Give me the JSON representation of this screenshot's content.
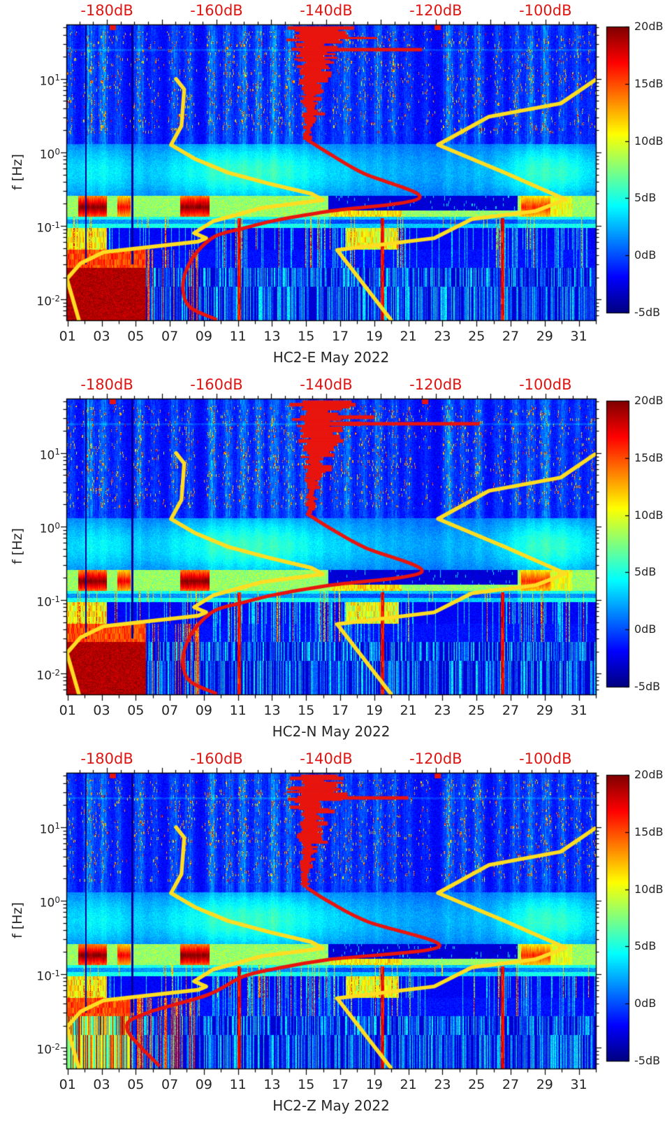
{
  "colors": {
    "background": "#ffffff",
    "axis_text": "#262626",
    "top_axis_text": "#df1512",
    "frame": "#000000",
    "red_curve": "#e8140e",
    "yellow_curve": "#ffdd22",
    "colormap_low": "#00008f",
    "colormap_high": "#800000"
  },
  "chart_data": {
    "type": "heatmap",
    "colormap": "jet",
    "value_unit": "dB",
    "value_range": [
      -5,
      20
    ],
    "axes": {
      "x": {
        "unit": "day of month",
        "tick_labels": [
          "01",
          "03",
          "05",
          "07",
          "09",
          "11",
          "13",
          "15",
          "17",
          "19",
          "21",
          "23",
          "25",
          "27",
          "29",
          "31"
        ],
        "tick_days": [
          1,
          3,
          5,
          7,
          9,
          11,
          13,
          15,
          17,
          19,
          21,
          23,
          25,
          27,
          29,
          31
        ],
        "range_days": [
          0.93,
          32.0
        ]
      },
      "y": {
        "label": "f [Hz]",
        "scale": "log",
        "range_hz": [
          0.0052,
          55
        ],
        "ticks": [
          {
            "base": "10",
            "exp": "1",
            "value": 10
          },
          {
            "base": "10",
            "exp": "0",
            "value": 1
          },
          {
            "base": "10",
            "exp": "-1",
            "value": 0.1
          },
          {
            "base": "10",
            "exp": "-2",
            "value": 0.01
          }
        ]
      },
      "top": {
        "unit": "dB",
        "tick_labels": [
          "-180dB",
          "-160dB",
          "-140dB",
          "-120dB",
          "-100dB"
        ],
        "tick_values": [
          -180,
          -160,
          -140,
          -120,
          -100
        ],
        "range_db": [
          -187.4,
          -90.8
        ],
        "minor_step_db": 2.5
      },
      "colorbar": {
        "tick_labels": [
          "20dB",
          "15dB",
          "10dB",
          "5dB",
          "0dB",
          "-5dB"
        ],
        "tick_values": [
          20,
          15,
          10,
          5,
          0,
          -5
        ]
      }
    },
    "overlay_note": "red and yellow curves are PSD level [dB, top axis] versus frequency [Hz, left axis]",
    "texture_shared": {
      "storm_events": [
        [
          1.15,
          0.5
        ],
        [
          2.25,
          0.95
        ],
        [
          3.1,
          0.75
        ],
        [
          3.95,
          0.5
        ],
        [
          5.2,
          0.75
        ],
        [
          6.1,
          0.4
        ],
        [
          7.25,
          0.65
        ],
        [
          8.15,
          0.55
        ],
        [
          9.45,
          0.85
        ],
        [
          10.4,
          0.7
        ],
        [
          11.3,
          0.8
        ],
        [
          12.2,
          0.75
        ],
        [
          13.1,
          0.9
        ],
        [
          14.0,
          0.8
        ],
        [
          14.9,
          0.7
        ],
        [
          15.8,
          0.6
        ],
        [
          16.7,
          0.5
        ],
        [
          17.4,
          0.7
        ],
        [
          18.3,
          0.6
        ],
        [
          19.2,
          0.75
        ],
        [
          20.1,
          0.6
        ],
        [
          21.0,
          0.45
        ],
        [
          22.0,
          0.3
        ],
        [
          23.35,
          0.9
        ],
        [
          24.2,
          0.55
        ],
        [
          25.1,
          0.75
        ],
        [
          26.3,
          0.5
        ],
        [
          27.3,
          0.65
        ],
        [
          28.15,
          0.75
        ],
        [
          29.05,
          0.85
        ],
        [
          30.0,
          0.6
        ],
        [
          30.9,
          0.55
        ],
        [
          31.7,
          0.4
        ]
      ],
      "microseism_hot_spells_days": [
        [
          1.6,
          3.3
        ],
        [
          3.9,
          4.7
        ],
        [
          7.6,
          9.3
        ],
        [
          27.6,
          29.3
        ]
      ],
      "microseism_hot_peak_db": [
        19,
        16,
        19,
        15
      ],
      "quiet_gap_days": [
        16.3,
        27.4
      ],
      "lowfreq_red_column_days": [
        11.05,
        19.45,
        26.5
      ],
      "dark_line_days": [
        2.06,
        4.78
      ],
      "streak_zone_days": [
        [
          1.0,
          3.5
        ],
        [
          9.5,
          21.5
        ],
        [
          25.8,
          31.5
        ]
      ]
    },
    "subplots": [
      {
        "title": "HC2-E May 2022",
        "red_curve_db_hz": [
          [
            -143.4,
            1.48
          ],
          [
            -139.4,
            0.96
          ],
          [
            -133.2,
            0.52
          ],
          [
            -123.0,
            0.24
          ],
          [
            -139.6,
            0.158
          ],
          [
            -149.2,
            0.119
          ],
          [
            -155.3,
            0.092
          ],
          [
            -160.3,
            0.072
          ],
          [
            -163.8,
            0.042
          ],
          [
            -165.7,
            0.023
          ],
          [
            -166.1,
            0.013
          ],
          [
            -164.8,
            0.0078
          ],
          [
            -160.2,
            0.0054
          ]
        ],
        "red_jagged": {
          "center_db": -142.5,
          "f_top_hz": 52,
          "f_join_hz": 1.55,
          "spread_top_db": 7.5,
          "spread_join_db": 1.2,
          "spike": {
            "f_hz": 25,
            "to_db": -122.5
          },
          "top_marks_db": [
            -179.0,
            -119.7
          ]
        },
        "yellow_curve_left_db_hz": [
          [
            -185.1,
            0.0052
          ],
          [
            -187.3,
            0.019
          ],
          [
            -184.8,
            0.031
          ],
          [
            -180.6,
            0.044
          ],
          [
            -163.4,
            0.061
          ],
          [
            -161.9,
            0.068
          ],
          [
            -164.1,
            0.08
          ],
          [
            -160.6,
            0.116
          ],
          [
            -151.7,
            0.176
          ],
          [
            -140.6,
            0.225
          ],
          [
            -142.7,
            0.274
          ],
          [
            -150.3,
            0.373
          ],
          [
            -157.9,
            0.53
          ],
          [
            -164.0,
            0.82
          ],
          [
            -168.3,
            1.27
          ],
          [
            -166.4,
            2.3
          ],
          [
            -165.9,
            7.2
          ],
          [
            -167.4,
            10.0
          ]
        ],
        "yellow_curve_right_db_hz": [
          [
            -128.2,
            0.0053
          ],
          [
            -138.0,
            0.047
          ],
          [
            -120.3,
            0.068
          ],
          [
            -113.4,
            0.124
          ],
          [
            -101.8,
            0.159
          ],
          [
            -96.3,
            0.229
          ],
          [
            -107.4,
            0.53
          ],
          [
            -119.6,
            1.27
          ],
          [
            -110.3,
            3.06
          ],
          [
            -97.2,
            4.64
          ],
          [
            -91.0,
            9.6
          ]
        ],
        "texture": {
          "seed": 1,
          "lowf_block_style": "solid",
          "lowf_block_end_day": 5.6
        }
      },
      {
        "title": "HC2-N May 2022",
        "red_curve_db_hz": [
          [
            -143.4,
            1.48
          ],
          [
            -139.4,
            0.96
          ],
          [
            -133.0,
            0.52
          ],
          [
            -122.6,
            0.24
          ],
          [
            -139.6,
            0.158
          ],
          [
            -149.2,
            0.119
          ],
          [
            -155.3,
            0.092
          ],
          [
            -160.3,
            0.072
          ],
          [
            -163.8,
            0.042
          ],
          [
            -165.7,
            0.023
          ],
          [
            -166.1,
            0.013
          ],
          [
            -164.8,
            0.0078
          ],
          [
            -160.2,
            0.0054
          ]
        ],
        "red_jagged": {
          "center_db": -142.0,
          "f_top_hz": 52,
          "f_join_hz": 1.55,
          "spread_top_db": 7.5,
          "spread_join_db": 1.2,
          "spike": {
            "f_hz": 25,
            "to_db": -112.0
          },
          "top_marks_db": [
            -179.0,
            -122.0
          ]
        },
        "yellow_curve_left_db_hz": [
          [
            -185.1,
            0.0052
          ],
          [
            -187.3,
            0.019
          ],
          [
            -184.8,
            0.031
          ],
          [
            -180.6,
            0.044
          ],
          [
            -163.4,
            0.061
          ],
          [
            -161.9,
            0.068
          ],
          [
            -164.1,
            0.08
          ],
          [
            -160.6,
            0.116
          ],
          [
            -151.7,
            0.176
          ],
          [
            -140.6,
            0.225
          ],
          [
            -142.7,
            0.274
          ],
          [
            -150.3,
            0.373
          ],
          [
            -157.9,
            0.53
          ],
          [
            -164.0,
            0.82
          ],
          [
            -168.3,
            1.27
          ],
          [
            -166.4,
            2.3
          ],
          [
            -165.9,
            7.2
          ],
          [
            -167.4,
            10.0
          ]
        ],
        "yellow_curve_right_db_hz": [
          [
            -128.2,
            0.0053
          ],
          [
            -138.0,
            0.047
          ],
          [
            -120.3,
            0.068
          ],
          [
            -113.4,
            0.124
          ],
          [
            -101.8,
            0.159
          ],
          [
            -96.3,
            0.229
          ],
          [
            -107.4,
            0.53
          ],
          [
            -119.6,
            1.27
          ],
          [
            -110.3,
            3.06
          ],
          [
            -97.2,
            4.64
          ],
          [
            -91.0,
            9.6
          ]
        ],
        "texture": {
          "seed": 2,
          "lowf_block_style": "solid",
          "lowf_block_end_day": 5.6
        }
      },
      {
        "title": "HC2-Z May 2022",
        "red_curve_db_hz": [
          [
            -143.4,
            1.48
          ],
          [
            -139.4,
            0.96
          ],
          [
            -132.5,
            0.52
          ],
          [
            -119.4,
            0.238
          ],
          [
            -139.6,
            0.158
          ],
          [
            -149.2,
            0.119
          ],
          [
            -155.3,
            0.092
          ],
          [
            -161.7,
            0.052
          ],
          [
            -173.1,
            0.029
          ],
          [
            -176.3,
            0.0177
          ],
          [
            -170.6,
            0.0058
          ]
        ],
        "red_jagged": {
          "center_db": -143.0,
          "f_top_hz": 52,
          "f_join_hz": 1.55,
          "spread_top_db": 7.5,
          "spread_join_db": 1.2,
          "spike": {
            "f_hz": 25,
            "to_db": -125.0
          },
          "top_marks_db": [
            -179.0,
            -119.7
          ]
        },
        "yellow_curve_left_db_hz": [
          [
            -185.1,
            0.0052
          ],
          [
            -187.3,
            0.019
          ],
          [
            -184.8,
            0.031
          ],
          [
            -180.6,
            0.044
          ],
          [
            -163.4,
            0.061
          ],
          [
            -161.9,
            0.068
          ],
          [
            -164.1,
            0.08
          ],
          [
            -160.6,
            0.116
          ],
          [
            -151.7,
            0.176
          ],
          [
            -140.6,
            0.225
          ],
          [
            -142.7,
            0.274
          ],
          [
            -150.3,
            0.373
          ],
          [
            -157.9,
            0.53
          ],
          [
            -164.0,
            0.82
          ],
          [
            -168.3,
            1.27
          ],
          [
            -166.4,
            2.3
          ],
          [
            -165.9,
            7.2
          ],
          [
            -167.4,
            10.0
          ]
        ],
        "yellow_curve_right_db_hz": [
          [
            -128.2,
            0.0053
          ],
          [
            -138.0,
            0.047
          ],
          [
            -120.3,
            0.068
          ],
          [
            -113.4,
            0.124
          ],
          [
            -101.8,
            0.159
          ],
          [
            -96.3,
            0.229
          ],
          [
            -107.4,
            0.53
          ],
          [
            -119.6,
            1.27
          ],
          [
            -110.3,
            3.06
          ],
          [
            -97.2,
            4.64
          ],
          [
            -91.0,
            9.6
          ]
        ],
        "texture": {
          "seed": 3,
          "lowf_block_style": "striped",
          "lowf_block_end_day": 4.7
        }
      }
    ]
  }
}
